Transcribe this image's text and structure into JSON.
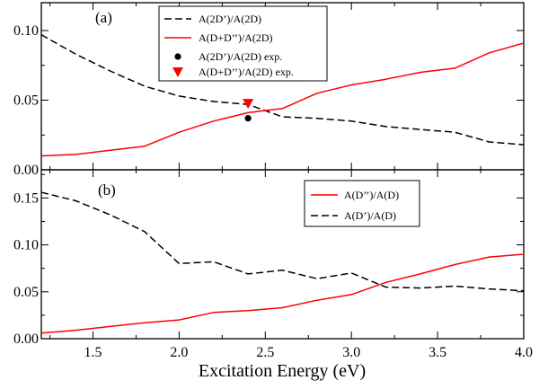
{
  "chart_data": [
    {
      "type": "line",
      "panel_label": "(a)",
      "xlim": [
        1.2,
        4.0
      ],
      "ylim": [
        0.0,
        0.12
      ],
      "x_ticks": [
        1.5,
        2.0,
        2.5,
        3.0,
        3.5,
        4.0
      ],
      "y_ticks": [
        0.0,
        0.05,
        0.1
      ],
      "y_tick_labels": [
        "0.00",
        "0.05",
        "0.10"
      ],
      "grid": false,
      "legend_position": "top-center",
      "series": [
        {
          "name": "A(2D’)/A(2D)",
          "color": "#000000",
          "style": "dashed",
          "x": [
            1.2,
            1.4,
            1.6,
            1.8,
            2.0,
            2.2,
            2.4,
            2.6,
            2.8,
            3.0,
            3.2,
            3.4,
            3.6,
            3.8,
            4.0
          ],
          "y": [
            0.097,
            0.083,
            0.071,
            0.06,
            0.053,
            0.049,
            0.047,
            0.038,
            0.037,
            0.035,
            0.031,
            0.029,
            0.027,
            0.02,
            0.018
          ]
        },
        {
          "name": "A(D+D’’)/A(2D)",
          "color": "#ff0000",
          "style": "solid",
          "x": [
            1.2,
            1.4,
            1.6,
            1.8,
            2.0,
            2.2,
            2.4,
            2.6,
            2.8,
            3.0,
            3.2,
            3.4,
            3.6,
            3.8,
            4.0
          ],
          "y": [
            0.01,
            0.011,
            0.014,
            0.017,
            0.027,
            0.035,
            0.041,
            0.044,
            0.055,
            0.061,
            0.065,
            0.07,
            0.073,
            0.084,
            0.091
          ]
        },
        {
          "name": "A(2D’)/A(2D) exp.",
          "color": "#000000",
          "marker": "circle",
          "x": [
            2.4
          ],
          "y": [
            0.037
          ]
        },
        {
          "name": "A(D+D’’)/A(2D) exp.",
          "color": "#ff0000",
          "marker": "triangle-down",
          "x": [
            2.4
          ],
          "y": [
            0.047
          ]
        }
      ]
    },
    {
      "type": "line",
      "panel_label": "(b)",
      "xlim": [
        1.2,
        4.0
      ],
      "ylim": [
        0.0,
        0.18
      ],
      "x_ticks": [
        1.5,
        2.0,
        2.5,
        3.0,
        3.5,
        4.0
      ],
      "x_tick_labels": [
        "1.5",
        "2.0",
        "2.5",
        "3.0",
        "3.5",
        "4.0"
      ],
      "y_ticks": [
        0.0,
        0.05,
        0.1,
        0.15
      ],
      "y_tick_labels": [
        "0.00",
        "0.05",
        "0.10",
        "0.15"
      ],
      "xlabel": "Excitation Energy (eV)",
      "grid": false,
      "legend_position": "top-right",
      "series": [
        {
          "name": "A(D’’)/A(D)",
          "color": "#ff0000",
          "style": "solid",
          "x": [
            1.2,
            1.4,
            1.6,
            1.8,
            2.0,
            2.2,
            2.4,
            2.6,
            2.8,
            3.0,
            3.2,
            3.4,
            3.6,
            3.8,
            4.0
          ],
          "y": [
            0.006,
            0.009,
            0.013,
            0.017,
            0.02,
            0.028,
            0.03,
            0.033,
            0.041,
            0.047,
            0.06,
            0.069,
            0.079,
            0.087,
            0.09
          ]
        },
        {
          "name": "A(D’)/A(D)",
          "color": "#000000",
          "style": "dashed",
          "x": [
            1.2,
            1.4,
            1.6,
            1.8,
            2.0,
            2.2,
            2.4,
            2.6,
            2.8,
            3.0,
            3.2,
            3.4,
            3.6,
            3.8,
            4.0
          ],
          "y": [
            0.156,
            0.147,
            0.132,
            0.114,
            0.08,
            0.082,
            0.069,
            0.073,
            0.064,
            0.07,
            0.055,
            0.054,
            0.056,
            0.053,
            0.051
          ]
        }
      ]
    }
  ]
}
